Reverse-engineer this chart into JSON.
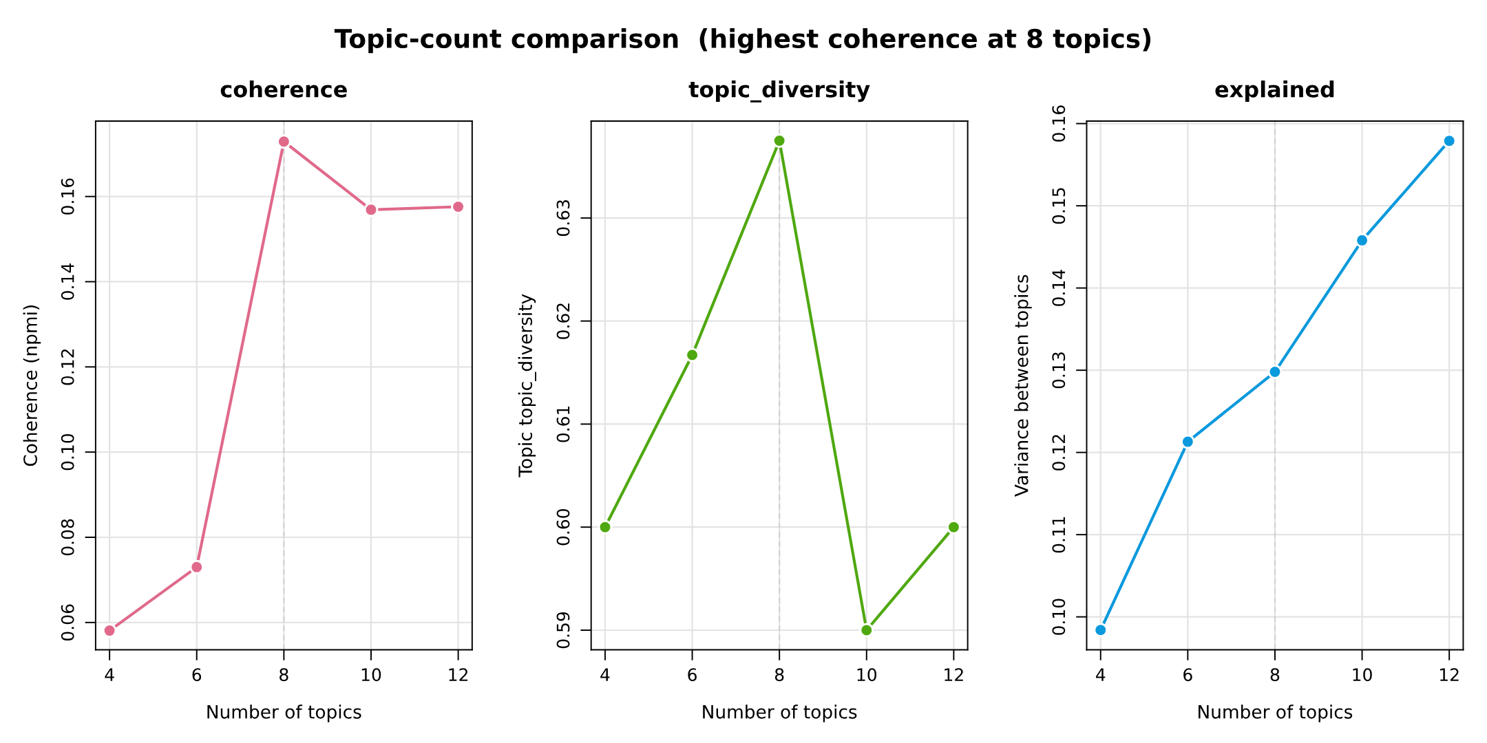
{
  "chart_data": [
    {
      "type": "other",
      "title": "Topic-count comparison  (highest coherence at 8 topics)"
    },
    {
      "type": "line",
      "title": "coherence",
      "xlabel": "Number of topics",
      "ylabel": "Coherence (npmi)",
      "x": [
        4,
        6,
        8,
        10,
        12
      ],
      "series": [
        {
          "color": "#e0698a",
          "values": [
            0.0581,
            0.073,
            0.1729,
            0.1569,
            0.1576
          ]
        }
      ],
      "xlim": [
        3.68,
        12.32
      ],
      "ylim": [
        0.0536,
        0.1777
      ],
      "xticks": [
        4,
        6,
        8,
        10,
        12
      ],
      "yticks": [
        {
          "value": 0.06,
          "label": "0.06"
        },
        {
          "value": 0.08,
          "label": "0.08"
        },
        {
          "value": 0.1,
          "label": "0.10"
        },
        {
          "value": 0.12,
          "label": "0.12"
        },
        {
          "value": 0.14,
          "label": "0.14"
        },
        {
          "value": 0.16,
          "label": "0.16"
        }
      ],
      "grid": true,
      "marker": "circle",
      "line_style": "solid",
      "ref_lines": [
        {
          "axis": "x",
          "value": 8,
          "color": "#cfcfcf",
          "line_style": "dashed"
        }
      ]
    },
    {
      "type": "line",
      "title": "topic_diversity",
      "xlabel": "Number of topics",
      "ylabel": "Topic topic_diversity",
      "x": [
        4,
        6,
        8,
        10,
        12
      ],
      "series": [
        {
          "color": "#4fa80f",
          "values": [
            0.6,
            0.6167,
            0.6375,
            0.59,
            0.6
          ]
        }
      ],
      "xlim": [
        3.68,
        12.32
      ],
      "ylim": [
        0.5881,
        0.6394
      ],
      "xticks": [
        4,
        6,
        8,
        10,
        12
      ],
      "yticks": [
        0.59,
        {
          "value": 0.6,
          "label": "0.60"
        },
        0.61,
        0.62,
        0.63
      ],
      "grid": true,
      "marker": "circle",
      "line_style": "solid",
      "ref_lines": [
        {
          "axis": "x",
          "value": 8,
          "color": "#cfcfcf",
          "line_style": "dashed"
        }
      ]
    },
    {
      "type": "line",
      "title": "explained",
      "xlabel": "Number of topics",
      "ylabel": "Variance between topics",
      "x": [
        4,
        6,
        8,
        10,
        12
      ],
      "series": [
        {
          "color": "#0a99dd",
          "values": [
            0.0984,
            0.1213,
            0.1298,
            0.1458,
            0.1579
          ]
        }
      ],
      "xlim": [
        3.68,
        12.32
      ],
      "ylim": [
        0.096,
        0.1603
      ],
      "xticks": [
        4,
        6,
        8,
        10,
        12
      ],
      "yticks": [
        {
          "value": 0.1,
          "label": "0.10"
        },
        0.11,
        0.12,
        0.13,
        0.14,
        0.15,
        0.16
      ],
      "grid": true,
      "marker": "circle",
      "line_style": "solid",
      "ref_lines": [
        {
          "axis": "x",
          "value": 8,
          "color": "#cfcfcf",
          "line_style": "dashed"
        }
      ]
    }
  ]
}
